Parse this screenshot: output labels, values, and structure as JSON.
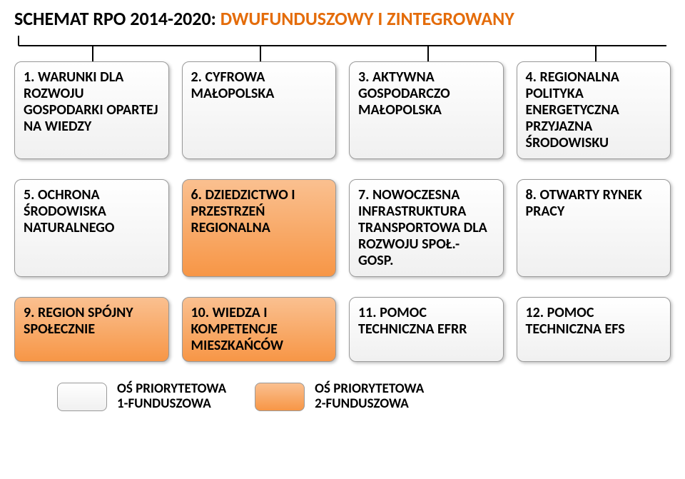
{
  "title": {
    "part1": "SCHEMAT RPO 2014-2020: ",
    "part2": "DWUFUNDUSZOWY I ZINTEGROWANY",
    "part2_color": "#e46c0a"
  },
  "colors": {
    "white_box_bg": "#ffffff",
    "white_box_grad_top": "#ffffff",
    "white_box_grad_bottom": "#f0f0f0",
    "orange_box_bg": "#f79646",
    "orange_box_grad_top": "#fac090",
    "orange_box_grad_bottom": "#f79646",
    "connector": "#000000",
    "text": "#000000"
  },
  "row1": [
    {
      "label": "1. WARUNKI DLA ROZWOJU GOSPODARKI OPARTEJ NA WIEDZY",
      "kind": "white"
    },
    {
      "label": "2. CYFROWA MAŁOPOLSKA",
      "kind": "white"
    },
    {
      "label": "3. AKTYWNA GOSPODARCZO MAŁOPOLSKA",
      "kind": "white"
    },
    {
      "label": "4. REGIONALNA POLITYKA ENERGETYCZNA PRZYJAZNA ŚRODOWISKU",
      "kind": "white"
    }
  ],
  "row2": [
    {
      "label": "5. OCHRONA ŚRODOWISKA NATURALNEGO",
      "kind": "white"
    },
    {
      "label": "6. DZIEDZICTWO I PRZESTRZEŃ REGIONALNA",
      "kind": "orange"
    },
    {
      "label": "7. NOWOCZESNA INFRASTRUKTURA TRANSPORTOWA DLA ROZWOJU SPOŁ.-GOSP.",
      "kind": "white"
    },
    {
      "label": "8. OTWARTY RYNEK PRACY",
      "kind": "white"
    }
  ],
  "row3": [
    {
      "label": "9. REGION SPÓJNY SPOŁECZNIE",
      "kind": "orange"
    },
    {
      "label": "10. WIEDZA I KOMPETENCJE MIESZKAŃCÓW",
      "kind": "orange"
    },
    {
      "label": "11. POMOC TECHNICZNA EFRR",
      "kind": "white"
    },
    {
      "label": "12. POMOC TECHNICZNA EFS",
      "kind": "white"
    }
  ],
  "legend": [
    {
      "label": "OŚ PRIORYTETOWA\n1-FUNDUSZOWA",
      "swatch": "white"
    },
    {
      "label": "OŚ PRIORYTETOWA\n2-FUNDUSZOWA",
      "swatch": "orange"
    }
  ]
}
